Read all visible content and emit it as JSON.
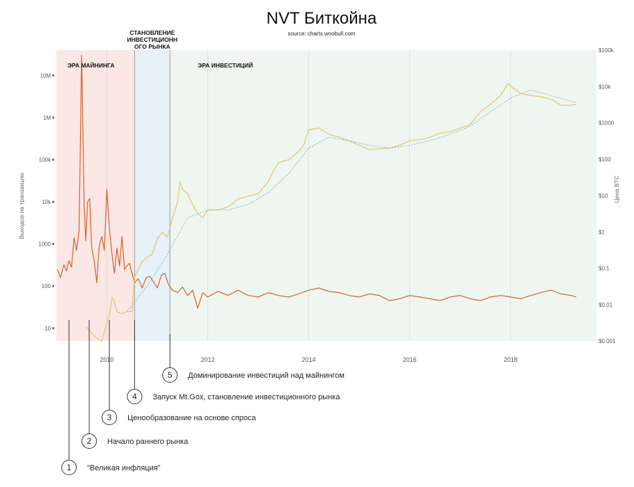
{
  "chart_data": {
    "type": "line",
    "title": "NVT Биткойна",
    "subtitle": "source: charts.woobull.com",
    "ylabel_left": "Выходов на транзакцию",
    "ylabel_right": "Цена BTC",
    "yscale": "log",
    "ylim_left": [
      5,
      40000000
    ],
    "ylim_right": [
      0.001,
      100000
    ],
    "x_range": [
      2009.0,
      2019.7
    ],
    "left_ticks": [
      "10",
      "100",
      "1000",
      "10k",
      "100k",
      "1M",
      "10M"
    ],
    "left_tick_values": [
      10,
      100,
      1000,
      10000,
      100000,
      1000000,
      10000000
    ],
    "right_ticks": [
      "$0.001",
      "$0.01",
      "$0.1",
      "$1",
      "$10",
      "$100",
      "$1000",
      "$10k",
      "$100k"
    ],
    "right_tick_values": [
      0.001,
      0.01,
      0.1,
      1,
      10,
      100,
      1000,
      10000,
      100000
    ],
    "x_ticks": [
      "2010",
      "2012",
      "2014",
      "2016",
      "2018"
    ],
    "x_tick_values": [
      2010,
      2012,
      2014,
      2016,
      2018
    ],
    "grid": true,
    "eras": [
      {
        "label": "ЭРА МАЙНИНГА",
        "from": 2009.0,
        "to": 2010.55,
        "color": "#fbe7e4"
      },
      {
        "label": "СТАНОВЛЕНИЕ ИНВЕСТИЦИОННОГО РЫНКА",
        "from": 2010.55,
        "to": 2011.25,
        "color": "#e6f1f8"
      },
      {
        "label": "ЭРА ИНВЕСТИЦИЙ",
        "from": 2011.25,
        "to": 2019.7,
        "color": "#eef6ef"
      }
    ],
    "series": [
      {
        "axis": "left",
        "color": "#d4602f",
        "x": [
          2009.02,
          2009.08,
          2009.15,
          2009.2,
          2009.25,
          2009.3,
          2009.35,
          2009.4,
          2009.45,
          2009.5,
          2009.55,
          2009.58,
          2009.62,
          2009.66,
          2009.7,
          2009.75,
          2009.8,
          2009.85,
          2009.9,
          2009.95,
          2010.0,
          2010.05,
          2010.1,
          2010.15,
          2010.2,
          2010.25,
          2010.3,
          2010.35,
          2010.4,
          2010.45,
          2010.5,
          2010.55,
          2010.62,
          2010.7,
          2010.78,
          2010.85,
          2010.92,
          2011.0,
          2011.08,
          2011.15,
          2011.22,
          2011.3,
          2011.4,
          2011.5,
          2011.6,
          2011.7,
          2011.8,
          2011.9,
          2012.0,
          2012.2,
          2012.4,
          2012.6,
          2012.8,
          2013.0,
          2013.2,
          2013.4,
          2013.6,
          2013.8,
          2014.0,
          2014.2,
          2014.4,
          2014.6,
          2014.8,
          2015.0,
          2015.2,
          2015.4,
          2015.6,
          2015.8,
          2016.0,
          2016.2,
          2016.4,
          2016.6,
          2016.8,
          2017.0,
          2017.2,
          2017.4,
          2017.6,
          2017.8,
          2018.0,
          2018.2,
          2018.4,
          2018.6,
          2018.8,
          2019.0,
          2019.2,
          2019.3
        ],
        "y": [
          250,
          160,
          320,
          230,
          400,
          280,
          1400,
          700,
          2000,
          30000000,
          9000,
          1200,
          10000,
          12000,
          800,
          400,
          120,
          900,
          1500,
          700,
          20000,
          2500,
          600,
          200,
          800,
          300,
          1500,
          250,
          300,
          350,
          200,
          120,
          150,
          90,
          160,
          170,
          130,
          90,
          180,
          200,
          110,
          80,
          70,
          95,
          60,
          80,
          30,
          70,
          55,
          75,
          60,
          80,
          60,
          55,
          70,
          60,
          55,
          65,
          80,
          90,
          75,
          70,
          60,
          55,
          65,
          60,
          45,
          50,
          60,
          55,
          50,
          45,
          55,
          60,
          50,
          45,
          55,
          60,
          55,
          50,
          60,
          70,
          80,
          65,
          60,
          55
        ]
      },
      {
        "axis": "right",
        "color": "#e3c572",
        "x": [
          2009.6,
          2009.7,
          2009.8,
          2009.9,
          2010.0,
          2010.05,
          2010.1,
          2010.15,
          2010.2,
          2010.3,
          2010.4,
          2010.5,
          2010.55,
          2010.6,
          2010.7,
          2010.8,
          2010.9,
          2011.0,
          2011.1,
          2011.2,
          2011.3,
          2011.4,
          2011.45,
          2011.5,
          2011.6,
          2011.7,
          2011.8,
          2011.9,
          2012.0,
          2012.2,
          2012.4,
          2012.6,
          2012.8,
          2013.0,
          2013.2,
          2013.3,
          2013.4,
          2013.6,
          2013.8,
          2013.9,
          2014.0,
          2014.2,
          2014.4,
          2014.6,
          2014.8,
          2015.0,
          2015.2,
          2015.4,
          2015.6,
          2015.8,
          2016.0,
          2016.2,
          2016.4,
          2016.6,
          2016.8,
          2017.0,
          2017.2,
          2017.4,
          2017.6,
          2017.8,
          2017.95,
          2018.05,
          2018.2,
          2018.4,
          2018.6,
          2018.8,
          2019.0,
          2019.2,
          2019.3
        ],
        "y": [
          0.003,
          0.002,
          0.0015,
          0.0012,
          0.004,
          0.006,
          0.02,
          0.015,
          0.008,
          0.007,
          0.008,
          0.008,
          0.07,
          0.1,
          0.19,
          0.25,
          0.3,
          0.8,
          1.2,
          0.9,
          3,
          8,
          30,
          18,
          14,
          7,
          4,
          3,
          5,
          5,
          6,
          10,
          12,
          14,
          30,
          60,
          100,
          120,
          200,
          300,
          800,
          900,
          600,
          500,
          400,
          300,
          230,
          240,
          250,
          300,
          400,
          430,
          500,
          650,
          700,
          900,
          1100,
          2500,
          4000,
          7000,
          15000,
          11000,
          8000,
          7000,
          6500,
          5500,
          3800,
          3800,
          4000
        ]
      },
      {
        "axis": "right",
        "color": "#7aa6c3",
        "dashed": true,
        "x": [
          2010.4,
          2010.8,
          2011.2,
          2011.6,
          2012.0,
          2012.4,
          2012.8,
          2013.2,
          2013.6,
          2014.0,
          2014.4,
          2014.8,
          2015.2,
          2015.6,
          2016.0,
          2016.4,
          2016.8,
          2017.2,
          2017.6,
          2018.0,
          2018.4,
          2018.8,
          2019.3
        ],
        "y": [
          0.008,
          0.04,
          0.3,
          3,
          5,
          5,
          7,
          15,
          50,
          250,
          500,
          400,
          300,
          250,
          300,
          400,
          600,
          1000,
          2500,
          6000,
          10000,
          7000,
          4500
        ]
      }
    ],
    "annotations": [
      {
        "num": "1",
        "text": "\"Великая инфляция\"",
        "x": 2009.25
      },
      {
        "num": "2",
        "text": "Начало раннего рынка",
        "x": 2009.65
      },
      {
        "num": "3",
        "text": "Ценообразование на основе спроса",
        "x": 2010.05
      },
      {
        "num": "4",
        "text": "Запуск Mt.Gox, становление инвестиционного рынка",
        "x": 2010.55
      },
      {
        "num": "5",
        "text": "Доминирование инвестиций над майнингом",
        "x": 2011.25
      }
    ]
  }
}
